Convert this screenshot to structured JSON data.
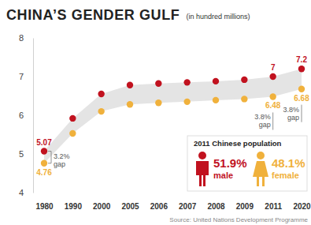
{
  "chart_data": {
    "type": "line",
    "title": "CHINA’S GENDER GULF",
    "subtitle": "(in hundred millions)",
    "categories": [
      "1980",
      "1990",
      "2000",
      "2005",
      "2006",
      "2007",
      "2008",
      "2009",
      "2011",
      "2020"
    ],
    "series": [
      {
        "name": "male",
        "color": "#c1121f",
        "marker": "circle",
        "line_style": "none",
        "values": [
          5.07,
          5.92,
          6.55,
          6.78,
          6.82,
          6.85,
          6.88,
          6.92,
          7,
          7.2
        ],
        "value_labels": [
          "5.07",
          null,
          null,
          null,
          null,
          null,
          null,
          null,
          "7",
          "7.2"
        ]
      },
      {
        "name": "female",
        "color": "#f0b13c",
        "marker": "circle",
        "line_style": "none",
        "values": [
          4.76,
          5.53,
          6.1,
          6.28,
          6.32,
          6.35,
          6.39,
          6.42,
          6.48,
          6.68
        ],
        "value_labels": [
          "4.76",
          null,
          null,
          null,
          null,
          null,
          null,
          null,
          "6.48",
          "6.68"
        ]
      }
    ],
    "ylim": [
      4,
      8
    ],
    "yticks": [
      4,
      5,
      6,
      7,
      8
    ],
    "grid": false,
    "data_labels": true,
    "annotations": [
      {
        "at": "1980",
        "text": [
          "3.2%",
          "gap"
        ]
      },
      {
        "at": "2011",
        "text": [
          "3.8%",
          "gap"
        ]
      },
      {
        "at": "2020",
        "text": [
          "3.8%",
          "gap"
        ]
      }
    ],
    "inset": {
      "title": "2011 Chinese population",
      "items": [
        {
          "series": "male",
          "share": "51.9%"
        },
        {
          "series": "female",
          "share": "48.1%"
        }
      ]
    },
    "source": "Source: United Nations Development Programme"
  }
}
